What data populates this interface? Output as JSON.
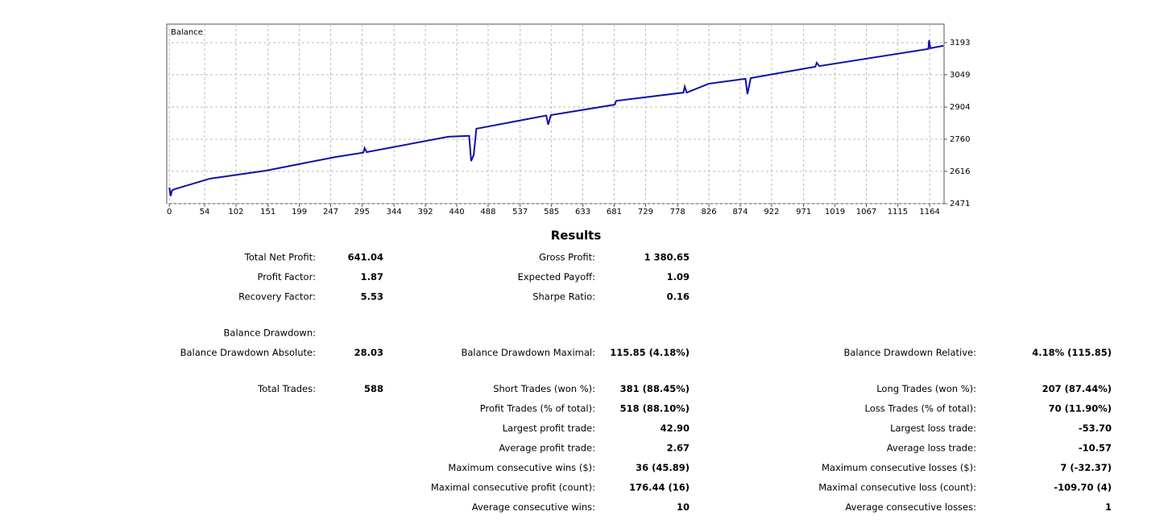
{
  "chart_data": {
    "type": "line",
    "x": [
      0,
      2,
      4,
      7,
      62,
      148,
      254,
      297,
      299,
      302,
      427,
      459,
      462,
      466,
      470,
      577,
      580,
      584,
      682,
      684,
      787,
      789,
      792,
      826,
      882,
      885,
      890,
      989,
      991,
      995,
      1162,
      1163,
      1165,
      1185
    ],
    "series": [
      {
        "name": "Balance",
        "color": "#1010a8",
        "values": [
          2543,
          2505,
          2530,
          2535,
          2583,
          2619,
          2680,
          2700,
          2720,
          2702,
          2771,
          2775,
          2662,
          2690,
          2807,
          2866,
          2825,
          2868,
          2915,
          2932,
          2969,
          2996,
          2969,
          3009,
          3031,
          2962,
          3034,
          3085,
          3103,
          3088,
          3165,
          3204,
          3168,
          3179
        ]
      }
    ],
    "xlim": [
      -4,
      1186
    ],
    "xticks": [
      0,
      54,
      102,
      151,
      199,
      247,
      295,
      344,
      392,
      440,
      488,
      537,
      585,
      633,
      681,
      729,
      778,
      826,
      874,
      922,
      971,
      1019,
      1067,
      1115,
      1164
    ],
    "ylim": [
      2471,
      3276
    ],
    "yticks": [
      2471,
      2616,
      2760,
      2904,
      3049,
      3193
    ],
    "grid": true
  },
  "results": {
    "title": "Results",
    "groups": [
      [
        [
          {
            "label": "Total Net Profit:",
            "value": "641.04"
          },
          {
            "label": "Gross Profit:",
            "value": "1 380.65"
          },
          null
        ],
        [
          {
            "label": "Profit Factor:",
            "value": "1.87"
          },
          {
            "label": "Expected Payoff:",
            "value": "1.09"
          },
          null
        ],
        [
          {
            "label": "Recovery Factor:",
            "value": "5.53"
          },
          {
            "label": "Sharpe Ratio:",
            "value": "0.16"
          },
          null
        ]
      ],
      [
        [
          {
            "label": "Balance Drawdown:"
          },
          null,
          null
        ],
        [
          {
            "label": "Balance Drawdown Absolute:",
            "value": "28.03"
          },
          {
            "label": "Balance Drawdown Maximal:",
            "value": "115.85 (4.18%)"
          },
          {
            "label": "Balance Drawdown Relative:",
            "value": "4.18% (115.85)"
          }
        ]
      ],
      [
        [
          {
            "label": "Total Trades:",
            "value": "588"
          },
          {
            "label": "Short Trades (won %):",
            "value": "381 (88.45%)"
          },
          {
            "label": "Long Trades (won %):",
            "value": "207 (87.44%)"
          }
        ],
        [
          null,
          {
            "label": "Profit Trades (% of total):",
            "value": "518 (88.10%)"
          },
          {
            "label": "Loss Trades (% of total):",
            "value": "70 (11.90%)"
          }
        ],
        [
          null,
          {
            "label": "Largest profit trade:",
            "value": "42.90"
          },
          {
            "label": "Largest loss trade:",
            "value": "-53.70"
          }
        ],
        [
          null,
          {
            "label": "Average profit trade:",
            "value": "2.67"
          },
          {
            "label": "Average loss trade:",
            "value": "-10.57"
          }
        ],
        [
          null,
          {
            "label": "Maximum consecutive wins ($):",
            "value": "36 (45.89)"
          },
          {
            "label": "Maximum consecutive losses ($):",
            "value": "7 (-32.37)"
          }
        ],
        [
          null,
          {
            "label": "Maximal consecutive profit (count):",
            "value": "176.44 (16)"
          },
          {
            "label": "Maximal consecutive loss (count):",
            "value": "-109.70 (4)"
          }
        ],
        [
          null,
          {
            "label": "Average consecutive wins:",
            "value": "10"
          },
          {
            "label": "Average consecutive losses:",
            "value": "1"
          }
        ]
      ]
    ]
  }
}
